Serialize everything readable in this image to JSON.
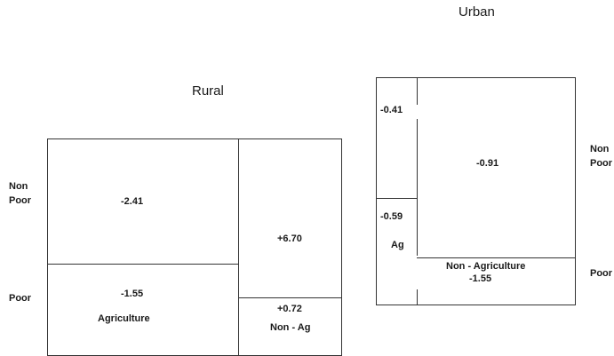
{
  "rural": {
    "title": "Rural",
    "row_labels": {
      "non_poor": [
        "Non",
        "Poor"
      ],
      "poor": "Poor"
    },
    "cells": {
      "agriculture_non_poor": "-2.41",
      "agriculture_poor": "-1.55",
      "agriculture_label": "Agriculture",
      "non_ag_non_poor": "+6.70",
      "non_ag_poor": "+0.72",
      "non_ag_label": "Non - Ag"
    }
  },
  "urban": {
    "title": "Urban",
    "row_labels": {
      "non_poor": [
        "Non",
        "Poor"
      ],
      "poor": "Poor"
    },
    "cells": {
      "ag_non_poor": "-0.41",
      "ag_poor": "-0.59",
      "ag_label": "Ag",
      "non_ag_non_poor": "-0.91",
      "non_ag_label": "Non - Agriculture",
      "non_ag_poor": "-1.55"
    }
  }
}
